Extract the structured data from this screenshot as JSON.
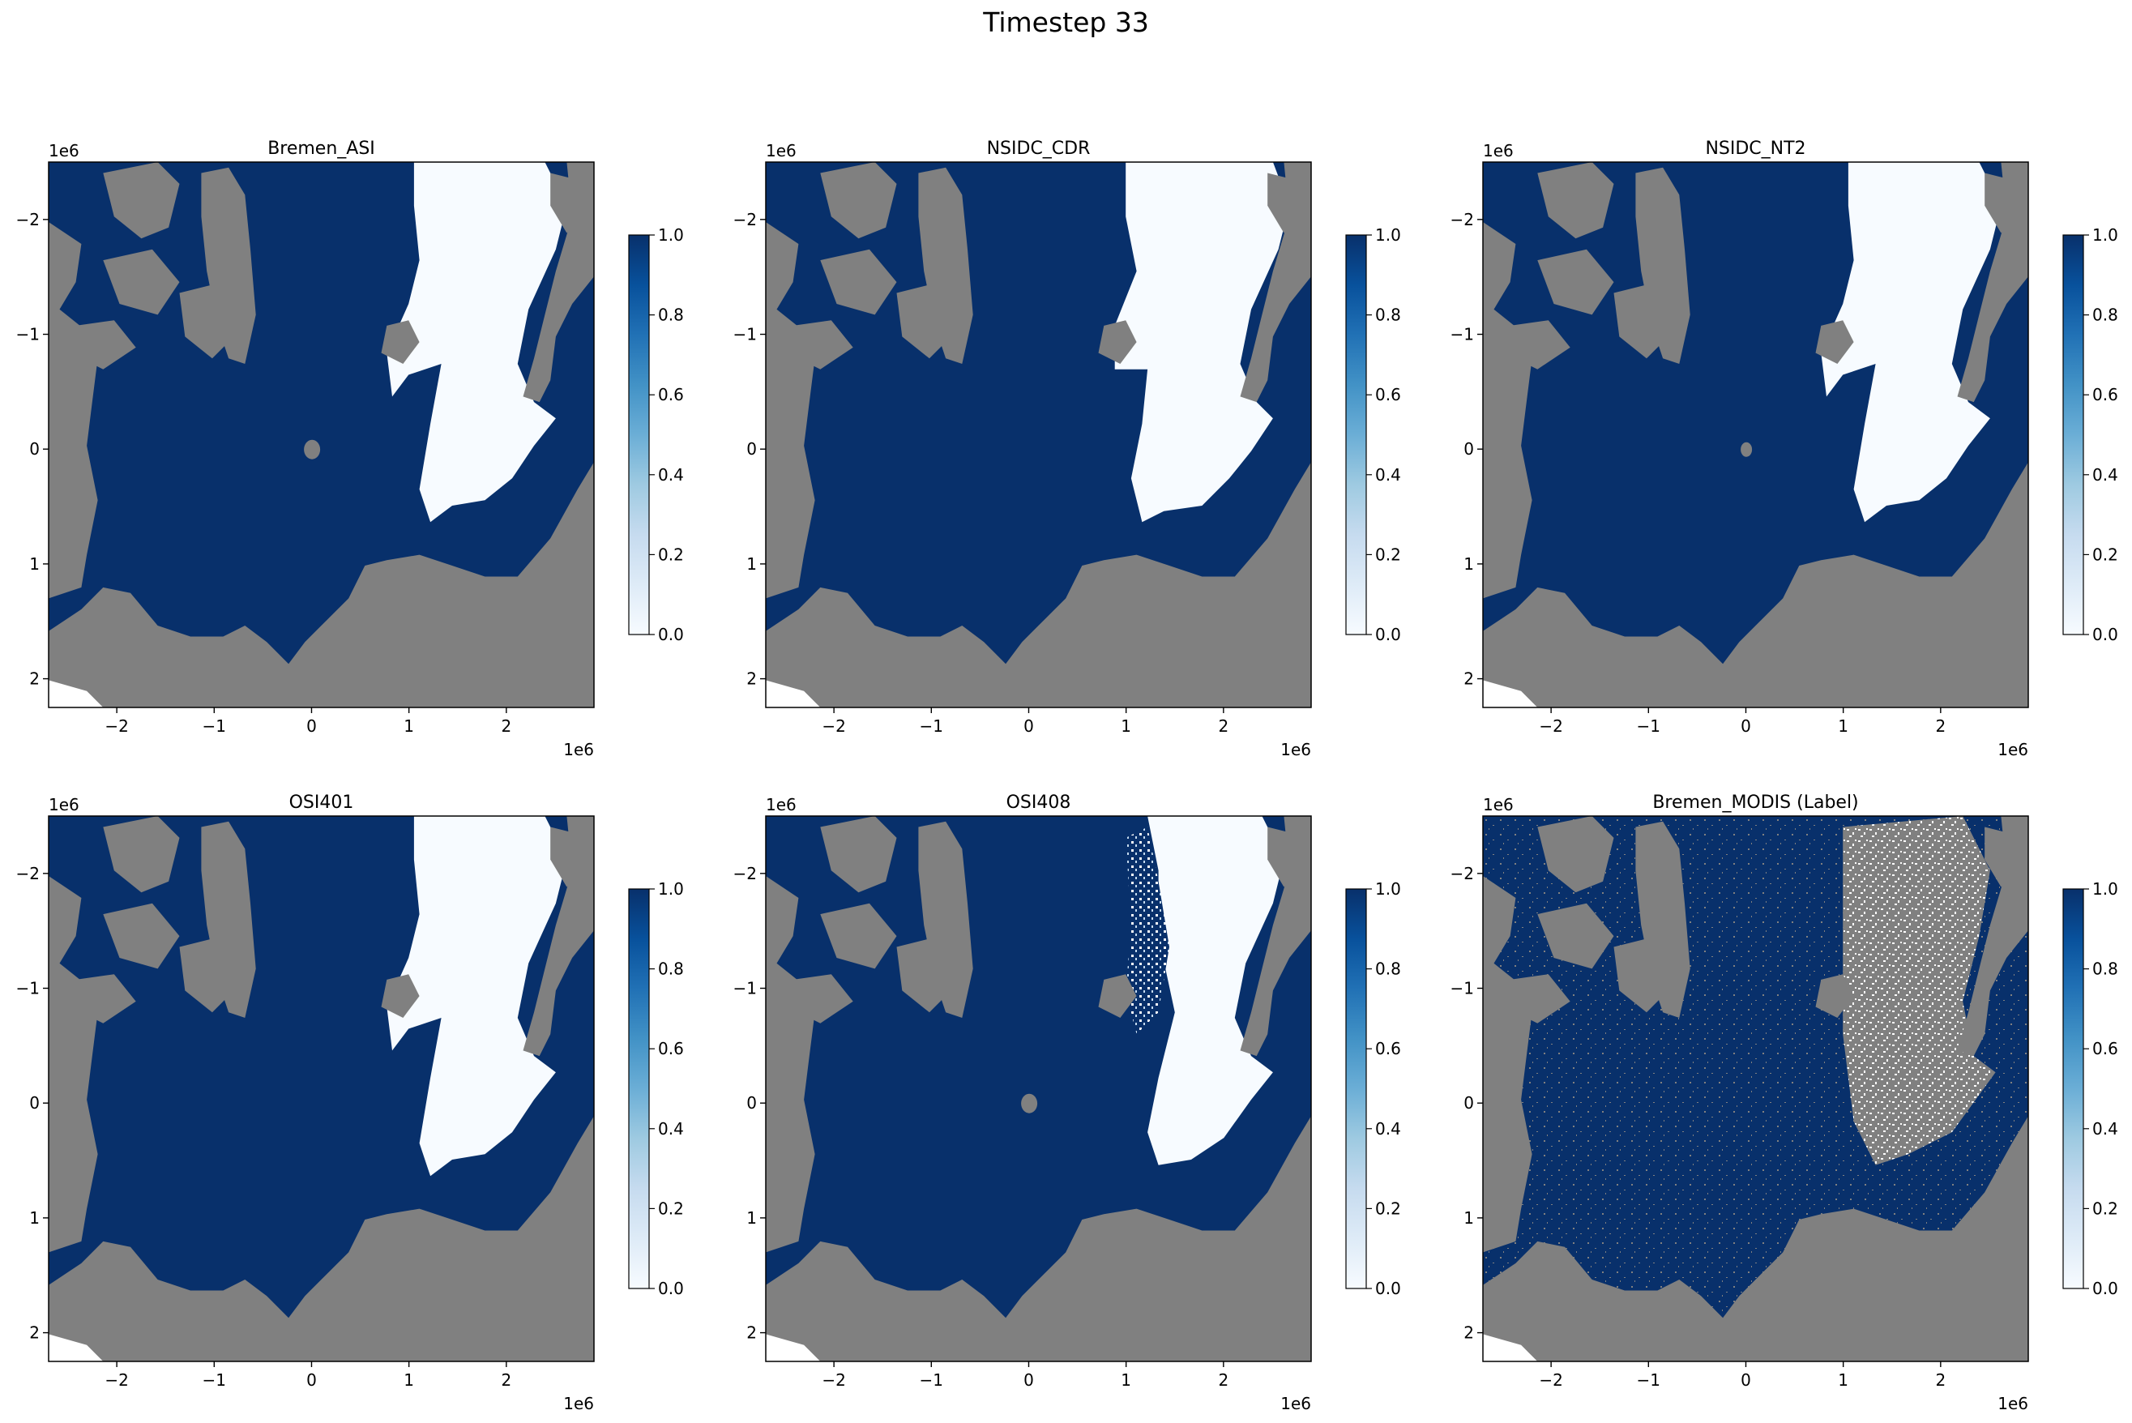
{
  "figure": {
    "title": "Timestep 33"
  },
  "chart_data": [
    {
      "type": "heatmap",
      "title": "Bremen_ASI",
      "x_ticks": [
        -2,
        -1,
        0,
        1,
        2
      ],
      "y_ticks": [
        -2,
        -1,
        0,
        1,
        2
      ],
      "x_tick_labels": [
        "−2",
        "−1",
        "0",
        "1",
        "2"
      ],
      "y_tick_labels": [
        "−2",
        "−1",
        "0",
        "1",
        "2"
      ],
      "x_offset_label": "1e6",
      "y_offset_label": "1e6",
      "xlim": [
        -2.7,
        2.9
      ],
      "ylim": [
        2.25,
        -2.5
      ],
      "colormap": "Blues",
      "land_color": "#808080",
      "colorbar": {
        "range": [
          0,
          1
        ],
        "ticks": [
          "0.0",
          "0.2",
          "0.4",
          "0.6",
          "0.8",
          "1.0"
        ]
      },
      "variant": "asi"
    },
    {
      "type": "heatmap",
      "title": "NSIDC_CDR",
      "x_ticks": [
        -2,
        -1,
        0,
        1,
        2
      ],
      "y_ticks": [
        -2,
        -1,
        0,
        1,
        2
      ],
      "x_tick_labels": [
        "−2",
        "−1",
        "0",
        "1",
        "2"
      ],
      "y_tick_labels": [
        "−2",
        "−1",
        "0",
        "1",
        "2"
      ],
      "x_offset_label": "1e6",
      "y_offset_label": "1e6",
      "xlim": [
        -2.7,
        2.9
      ],
      "ylim": [
        2.25,
        -2.5
      ],
      "colormap": "Blues",
      "land_color": "#808080",
      "colorbar": {
        "range": [
          0,
          1
        ],
        "ticks": [
          "0.0",
          "0.2",
          "0.4",
          "0.6",
          "0.8",
          "1.0"
        ]
      },
      "variant": "cdr"
    },
    {
      "type": "heatmap",
      "title": "NSIDC_NT2",
      "x_ticks": [
        -2,
        -1,
        0,
        1,
        2
      ],
      "y_ticks": [
        -2,
        -1,
        0,
        1,
        2
      ],
      "x_tick_labels": [
        "−2",
        "−1",
        "0",
        "1",
        "2"
      ],
      "y_tick_labels": [
        "−2",
        "−1",
        "0",
        "1",
        "2"
      ],
      "x_offset_label": "1e6",
      "y_offset_label": "1e6",
      "xlim": [
        -2.7,
        2.9
      ],
      "ylim": [
        2.25,
        -2.5
      ],
      "colormap": "Blues",
      "land_color": "#808080",
      "colorbar": {
        "range": [
          0,
          1
        ],
        "ticks": [
          "0.0",
          "0.2",
          "0.4",
          "0.6",
          "0.8",
          "1.0"
        ]
      },
      "variant": "nt2"
    },
    {
      "type": "heatmap",
      "title": "OSI401",
      "x_ticks": [
        -2,
        -1,
        0,
        1,
        2
      ],
      "y_ticks": [
        -2,
        -1,
        0,
        1,
        2
      ],
      "x_tick_labels": [
        "−2",
        "−1",
        "0",
        "1",
        "2"
      ],
      "y_tick_labels": [
        "−2",
        "−1",
        "0",
        "1",
        "2"
      ],
      "x_offset_label": "1e6",
      "y_offset_label": "1e6",
      "xlim": [
        -2.7,
        2.9
      ],
      "ylim": [
        2.25,
        -2.5
      ],
      "colormap": "Blues",
      "land_color": "#808080",
      "colorbar": {
        "range": [
          0,
          1
        ],
        "ticks": [
          "0.0",
          "0.2",
          "0.4",
          "0.6",
          "0.8",
          "1.0"
        ]
      },
      "variant": "osi401"
    },
    {
      "type": "heatmap",
      "title": "OSI408",
      "x_ticks": [
        -2,
        -1,
        0,
        1,
        2
      ],
      "y_ticks": [
        -2,
        -1,
        0,
        1,
        2
      ],
      "x_tick_labels": [
        "−2",
        "−1",
        "0",
        "1",
        "2"
      ],
      "y_tick_labels": [
        "−2",
        "−1",
        "0",
        "1",
        "2"
      ],
      "x_offset_label": "1e6",
      "y_offset_label": "1e6",
      "xlim": [
        -2.7,
        2.9
      ],
      "ylim": [
        2.25,
        -2.5
      ],
      "colormap": "Blues",
      "land_color": "#808080",
      "colorbar": {
        "range": [
          0,
          1
        ],
        "ticks": [
          "0.0",
          "0.2",
          "0.4",
          "0.6",
          "0.8",
          "1.0"
        ]
      },
      "variant": "osi408"
    },
    {
      "type": "heatmap",
      "title": "Bremen_MODIS (Label)",
      "x_ticks": [
        -2,
        -1,
        0,
        1,
        2
      ],
      "y_ticks": [
        -2,
        -1,
        0,
        1,
        2
      ],
      "x_tick_labels": [
        "−2",
        "−1",
        "0",
        "1",
        "2"
      ],
      "y_tick_labels": [
        "−2",
        "−1",
        "0",
        "1",
        "2"
      ],
      "x_offset_label": "1e6",
      "y_offset_label": "1e6",
      "xlim": [
        -2.7,
        2.9
      ],
      "ylim": [
        2.25,
        -2.5
      ],
      "colormap": "Blues",
      "land_color": "#808080",
      "colorbar": {
        "range": [
          0,
          1
        ],
        "ticks": [
          "0.0",
          "0.2",
          "0.4",
          "0.6",
          "0.8",
          "1.0"
        ]
      },
      "variant": "modis"
    }
  ]
}
